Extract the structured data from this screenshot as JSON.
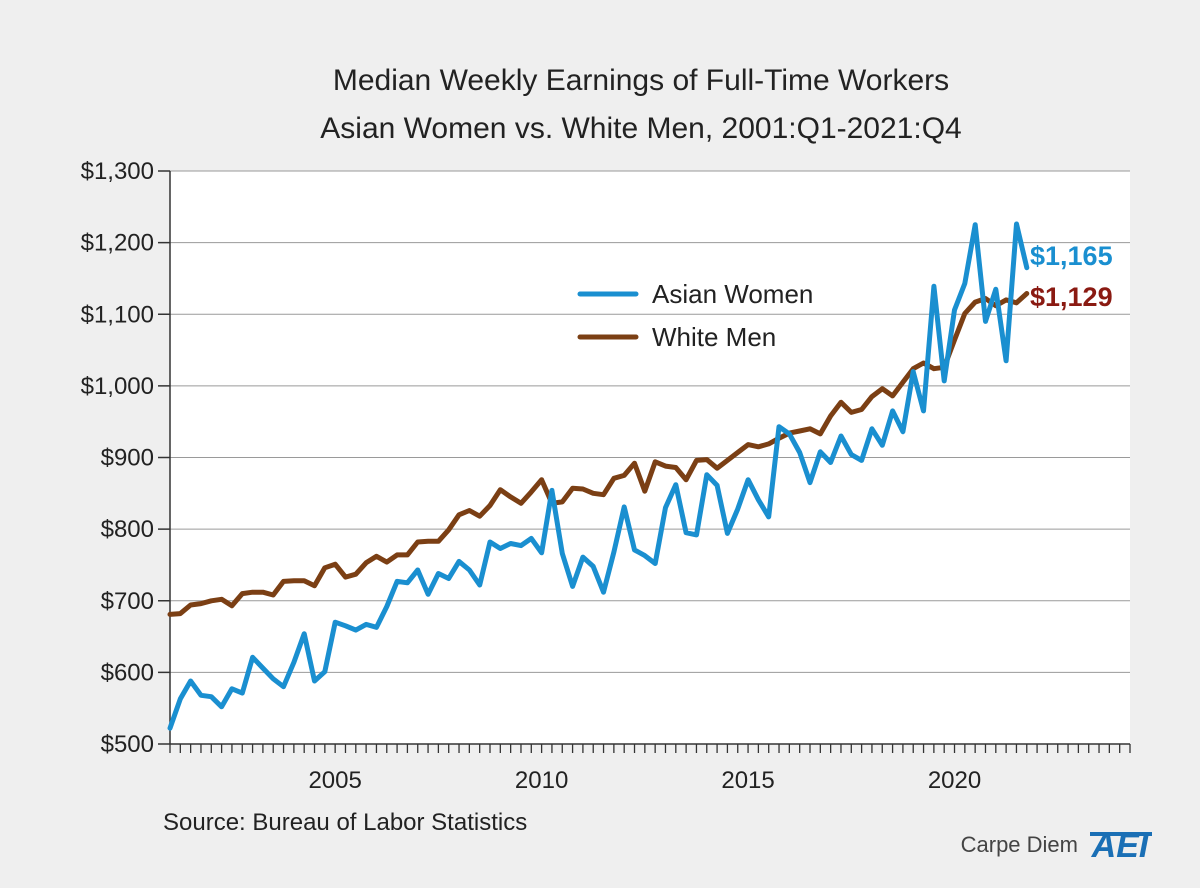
{
  "chart_data": {
    "type": "line",
    "title": "Median Weekly Earnings of Full-Time Workers",
    "subtitle": "Asian Women vs. White Men, 2001:Q1-2021:Q4",
    "xlabel": "",
    "ylabel": "",
    "ylim": [
      500,
      1300
    ],
    "xlim": [
      2001,
      2024.25
    ],
    "y_ticks": [
      500,
      600,
      700,
      800,
      900,
      1000,
      1100,
      1200,
      1300
    ],
    "y_tick_labels": [
      "$500",
      "$600",
      "$700",
      "$800",
      "$900",
      "$1,000",
      "$1,100",
      "$1,200",
      "$1,300"
    ],
    "x_ticks": [
      2005,
      2010,
      2015,
      2020
    ],
    "x_tick_labels": [
      "2005",
      "2010",
      "2015",
      "2020"
    ],
    "grid": "horizontal",
    "legend_position": "upper-middle-right",
    "x": [
      "2001:Q1",
      "2001:Q2",
      "2001:Q3",
      "2001:Q4",
      "2002:Q1",
      "2002:Q2",
      "2002:Q3",
      "2002:Q4",
      "2003:Q1",
      "2003:Q2",
      "2003:Q3",
      "2003:Q4",
      "2004:Q1",
      "2004:Q2",
      "2004:Q3",
      "2004:Q4",
      "2005:Q1",
      "2005:Q2",
      "2005:Q3",
      "2005:Q4",
      "2006:Q1",
      "2006:Q2",
      "2006:Q3",
      "2006:Q4",
      "2007:Q1",
      "2007:Q2",
      "2007:Q3",
      "2007:Q4",
      "2008:Q1",
      "2008:Q2",
      "2008:Q3",
      "2008:Q4",
      "2009:Q1",
      "2009:Q2",
      "2009:Q3",
      "2009:Q4",
      "2010:Q1",
      "2010:Q2",
      "2010:Q3",
      "2010:Q4",
      "2011:Q1",
      "2011:Q2",
      "2011:Q3",
      "2011:Q4",
      "2012:Q1",
      "2012:Q2",
      "2012:Q3",
      "2012:Q4",
      "2013:Q1",
      "2013:Q2",
      "2013:Q3",
      "2013:Q4",
      "2014:Q1",
      "2014:Q2",
      "2014:Q3",
      "2014:Q4",
      "2015:Q1",
      "2015:Q2",
      "2015:Q3",
      "2015:Q4",
      "2016:Q1",
      "2016:Q2",
      "2016:Q3",
      "2016:Q4",
      "2017:Q1",
      "2017:Q2",
      "2017:Q3",
      "2017:Q4",
      "2018:Q1",
      "2018:Q2",
      "2018:Q3",
      "2018:Q4",
      "2019:Q1",
      "2019:Q2",
      "2019:Q3",
      "2019:Q4",
      "2020:Q1",
      "2020:Q2",
      "2020:Q3",
      "2020:Q4",
      "2021:Q1",
      "2021:Q2",
      "2021:Q3",
      "2021:Q4"
    ],
    "series": [
      {
        "name": "Asian Women",
        "color": "#1a8fd0",
        "end_label": "$1,165",
        "values": [
          522,
          563,
          588,
          568,
          566,
          552,
          577,
          571,
          621,
          606,
          591,
          580,
          614,
          654,
          588,
          601,
          670,
          665,
          659,
          667,
          663,
          692,
          727,
          725,
          743,
          709,
          738,
          731,
          755,
          743,
          722,
          782,
          773,
          780,
          777,
          787,
          767,
          854,
          766,
          720,
          761,
          748,
          712,
          768,
          831,
          771,
          763,
          752,
          830,
          862,
          795,
          792,
          876,
          861,
          794,
          828,
          869,
          841,
          817,
          943,
          933,
          907,
          865,
          908,
          893,
          930,
          904,
          896,
          940,
          917,
          965,
          936,
          1020,
          965,
          1139,
          1007,
          1106,
          1143,
          1225,
          1090,
          1135,
          1035,
          1226,
          1165
        ]
      },
      {
        "name": "White Men",
        "color": "#7b3f14",
        "end_label": "$1,129",
        "values": [
          681,
          682,
          694,
          696,
          700,
          702,
          693,
          710,
          712,
          712,
          708,
          727,
          728,
          728,
          721,
          746,
          751,
          733,
          737,
          753,
          762,
          754,
          764,
          764,
          782,
          783,
          783,
          799,
          820,
          826,
          818,
          833,
          855,
          845,
          836,
          852,
          869,
          836,
          838,
          857,
          856,
          850,
          848,
          871,
          875,
          892,
          853,
          894,
          888,
          886,
          869,
          896,
          897,
          885,
          896,
          907,
          918,
          915,
          919,
          927,
          934,
          937,
          940,
          933,
          958,
          977,
          963,
          967,
          985,
          996,
          986,
          1005,
          1024,
          1032,
          1024,
          1026,
          1064,
          1101,
          1117,
          1122,
          1112,
          1120,
          1116,
          1129
        ]
      }
    ]
  },
  "source": "Source: Bureau of Labor Statistics",
  "brand": {
    "text": "Carpe Diem",
    "logo_text": "AEI",
    "logo_color": "#1a6fb5"
  }
}
